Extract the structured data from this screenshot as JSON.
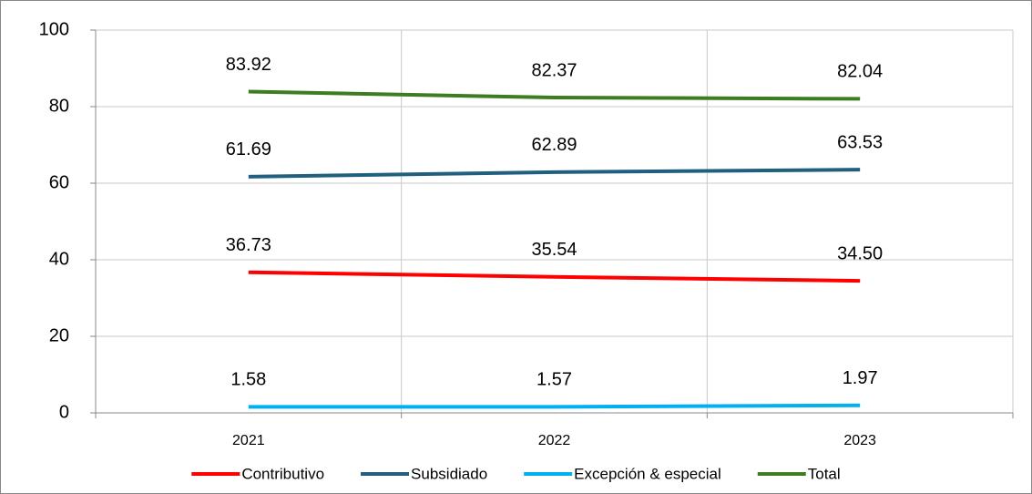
{
  "chart_data": {
    "type": "line",
    "categories": [
      "2021",
      "2022",
      "2023"
    ],
    "series": [
      {
        "name": "Contributivo",
        "color": "#ff0000",
        "values": [
          36.73,
          35.54,
          34.5
        ],
        "value_labels": [
          "36.73",
          "35.54",
          "34.50"
        ]
      },
      {
        "name": "Subsidiado",
        "color": "#215f7f",
        "values": [
          61.69,
          62.89,
          63.53
        ],
        "value_labels": [
          "61.69",
          "62.89",
          "63.53"
        ]
      },
      {
        "name": "Excepción & especial",
        "color": "#00b0f0",
        "values": [
          1.58,
          1.57,
          1.97
        ],
        "value_labels": [
          "1.58",
          "1.57",
          "1.97"
        ]
      },
      {
        "name": "Total",
        "color": "#3c7d22",
        "values": [
          83.92,
          82.37,
          82.04
        ],
        "value_labels": [
          "83.92",
          "82.37",
          "82.04"
        ]
      }
    ],
    "ylim": [
      0,
      100
    ],
    "yticks": [
      0,
      20,
      40,
      60,
      80,
      100
    ],
    "grid": true,
    "legend": "bottom"
  }
}
